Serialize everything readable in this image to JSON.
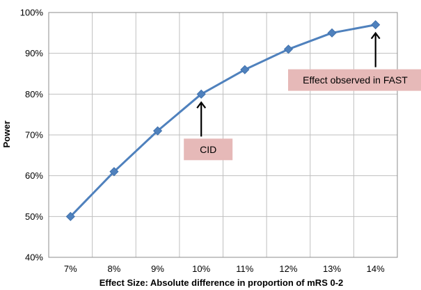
{
  "chart_data": {
    "type": "line",
    "categories": [
      "7%",
      "8%",
      "9%",
      "10%",
      "11%",
      "12%",
      "13%",
      "14%"
    ],
    "series": [
      {
        "values": [
          50,
          61,
          71,
          80,
          86,
          91,
          95,
          97
        ]
      }
    ],
    "xlabel": "Effect Size: Absolute difference in proportion of mRS 0-2",
    "ylabel": "Power",
    "ylim": [
      40,
      100
    ],
    "yticks": [
      40,
      50,
      60,
      70,
      80,
      90,
      100
    ],
    "ytick_labels": [
      "40%",
      "50%",
      "60%",
      "70%",
      "80%",
      "90%",
      "100%"
    ],
    "grid": true,
    "colors": {
      "line": "#4F81BD",
      "marker": "#4F81BD",
      "annotation_box": "#E6B9B8",
      "grid": "#BFBFBF"
    },
    "annotations": [
      {
        "text": "CID",
        "category": "10%",
        "value": 80
      },
      {
        "text": "Effect observed in FAST",
        "category": "14%",
        "value": 97
      }
    ]
  }
}
